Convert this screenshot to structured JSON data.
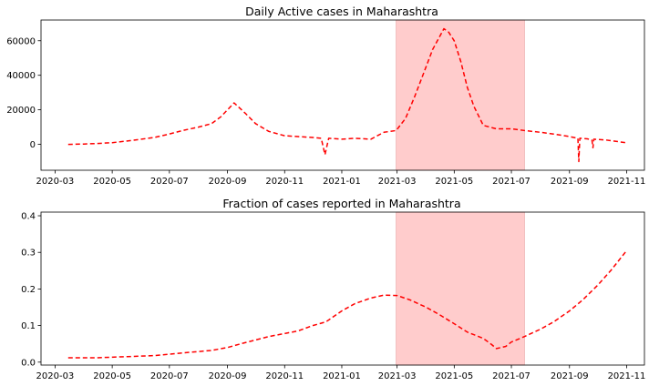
{
  "chart_data": [
    {
      "type": "line",
      "title": "Daily Active cases in Maharashtra",
      "xlabel": "",
      "ylabel": "",
      "x_ticks": [
        "2020-03",
        "2020-05",
        "2020-07",
        "2020-09",
        "2020-11",
        "2021-01",
        "2021-03",
        "2021-05",
        "2021-07",
        "2021-09",
        "2021-11"
      ],
      "y_ticks": [
        "0",
        "20000",
        "40000",
        "60000"
      ],
      "xlim": [
        "2020-02-15",
        "2021-11-20"
      ],
      "ylim": [
        -15000,
        72000
      ],
      "highlight_span": [
        "2021-02-28",
        "2021-07-15"
      ],
      "highlight_color": "#ffcccc",
      "line_color": "#ff0000",
      "line_style": "dashed",
      "grid": false,
      "series": [
        {
          "x": [
            "2020-03-15",
            "2020-04-01",
            "2020-04-15",
            "2020-05-01",
            "2020-05-15",
            "2020-06-01",
            "2020-06-15",
            "2020-07-01",
            "2020-07-15",
            "2020-08-01",
            "2020-08-15",
            "2020-08-25",
            "2020-09-01",
            "2020-09-08",
            "2020-09-12",
            "2020-09-16",
            "2020-09-20",
            "2020-10-01",
            "2020-10-15",
            "2020-11-01",
            "2020-11-15",
            "2020-12-01",
            "2020-12-10",
            "2020-12-14",
            "2020-12-18",
            "2021-01-01",
            "2021-01-15",
            "2021-02-01",
            "2021-02-15",
            "2021-02-28",
            "2021-03-10",
            "2021-03-20",
            "2021-04-01",
            "2021-04-08",
            "2021-04-15",
            "2021-04-20",
            "2021-04-25",
            "2021-05-01",
            "2021-05-08",
            "2021-05-15",
            "2021-05-22",
            "2021-06-01",
            "2021-06-15",
            "2021-07-01",
            "2021-07-15",
            "2021-08-01",
            "2021-08-15",
            "2021-09-01",
            "2021-09-10",
            "2021-09-11",
            "2021-09-12",
            "2021-09-20",
            "2021-09-25",
            "2021-09-26",
            "2021-09-27",
            "2021-10-10",
            "2021-10-31"
          ],
          "y": [
            0,
            200,
            500,
            1000,
            1800,
            3000,
            4000,
            6000,
            8000,
            10000,
            12000,
            16000,
            20000,
            24000,
            22000,
            20000,
            18000,
            12000,
            7500,
            5000,
            4500,
            4000,
            3500,
            -6000,
            3500,
            3000,
            3500,
            3000,
            7000,
            8000,
            15000,
            28000,
            45000,
            55000,
            62000,
            67000,
            65000,
            60000,
            48000,
            33000,
            22000,
            11000,
            9000,
            9000,
            8000,
            7000,
            6000,
            4500,
            3500,
            -10000,
            3500,
            3200,
            2500,
            -2000,
            3000,
            2500,
            1000
          ]
        }
      ]
    },
    {
      "type": "line",
      "title": "Fraction of cases reported in Maharashtra",
      "xlabel": "",
      "ylabel": "",
      "x_ticks": [
        "2020-03",
        "2020-05",
        "2020-07",
        "2020-09",
        "2020-11",
        "2021-01",
        "2021-03",
        "2021-05",
        "2021-07",
        "2021-09",
        "2021-11"
      ],
      "y_ticks": [
        "0.0",
        "0.1",
        "0.2",
        "0.3",
        "0.4"
      ],
      "xlim": [
        "2020-02-15",
        "2021-11-20"
      ],
      "ylim": [
        -0.008,
        0.41
      ],
      "highlight_span": [
        "2021-02-28",
        "2021-07-15"
      ],
      "highlight_color": "#ffcccc",
      "line_color": "#ff0000",
      "line_style": "dashed",
      "grid": false,
      "series": [
        {
          "x": [
            "2020-03-15",
            "2020-04-15",
            "2020-05-15",
            "2020-06-15",
            "2020-07-15",
            "2020-08-15",
            "2020-09-01",
            "2020-09-15",
            "2020-10-15",
            "2020-11-15",
            "2020-12-01",
            "2020-12-15",
            "2021-01-01",
            "2021-01-15",
            "2021-02-01",
            "2021-02-15",
            "2021-03-01",
            "2021-03-15",
            "2021-04-01",
            "2021-04-15",
            "2021-05-01",
            "2021-05-15",
            "2021-06-01",
            "2021-06-10",
            "2021-06-15",
            "2021-06-25",
            "2021-07-01",
            "2021-07-15",
            "2021-08-01",
            "2021-08-15",
            "2021-09-01",
            "2021-09-15",
            "2021-10-01",
            "2021-10-15",
            "2021-11-01"
          ],
          "y": [
            0.012,
            0.012,
            0.015,
            0.018,
            0.025,
            0.032,
            0.04,
            0.05,
            0.07,
            0.085,
            0.1,
            0.11,
            0.14,
            0.16,
            0.175,
            0.183,
            0.182,
            0.17,
            0.15,
            0.13,
            0.105,
            0.082,
            0.065,
            0.048,
            0.037,
            0.043,
            0.055,
            0.07,
            0.09,
            0.11,
            0.14,
            0.17,
            0.21,
            0.25,
            0.305
          ]
        }
      ]
    }
  ]
}
